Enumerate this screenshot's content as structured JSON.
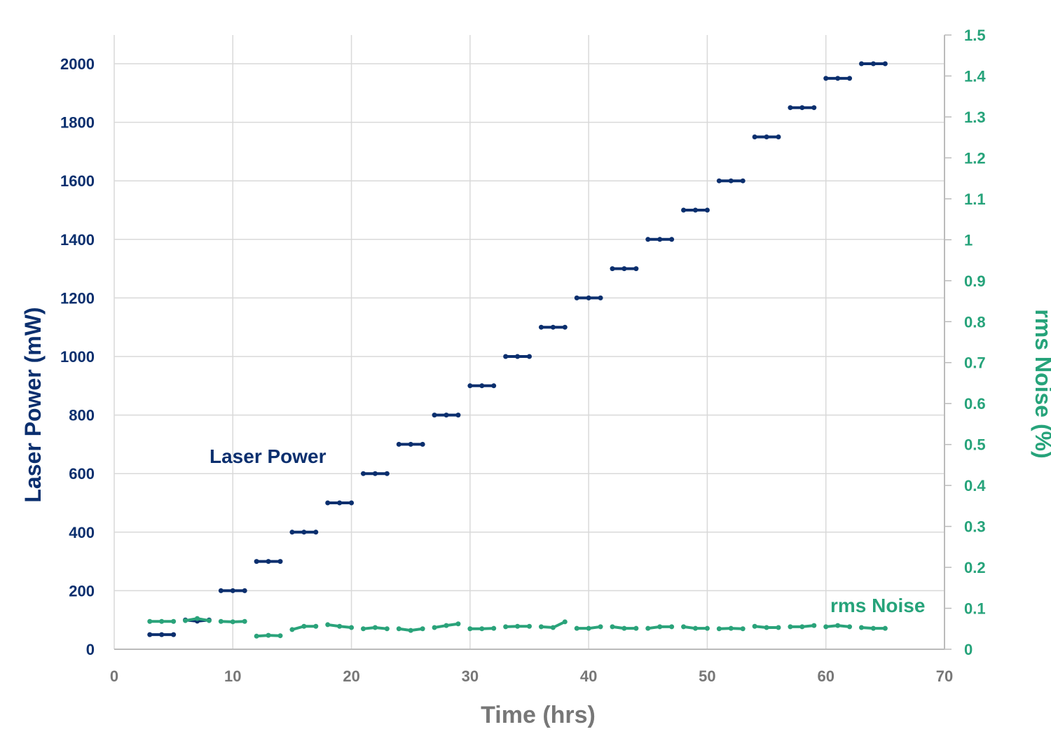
{
  "chart_data": {
    "type": "line",
    "xlabel": "Time (hrs)",
    "ylabel": "Laser Power (mW)",
    "y2label": "rms Noise (%)",
    "xlim": [
      0,
      70
    ],
    "ylim": [
      0,
      2100
    ],
    "y2lim": [
      0,
      1.5
    ],
    "xticks": [
      "0",
      "10",
      "20",
      "30",
      "40",
      "50",
      "60",
      "70"
    ],
    "yticks": [
      "0",
      "200",
      "400",
      "600",
      "800",
      "1000",
      "1200",
      "1400",
      "1600",
      "1800",
      "2000"
    ],
    "y2ticks": [
      "0",
      "0.1",
      "0.2",
      "0.3",
      "0.4",
      "0.5",
      "0.6",
      "0.7",
      "0.8",
      "0.9",
      "1",
      "1.1",
      "1.2",
      "1.3",
      "1.4",
      "1.5"
    ],
    "grid": true,
    "colors": {
      "laser": "#0b2f6e",
      "noise": "#2aa37a",
      "grid": "#d9d9d9"
    },
    "series": [
      {
        "name": "Laser Power",
        "axis": "left",
        "segments": [
          {
            "x": [
              3,
              4,
              5
            ],
            "y": [
              50,
              50,
              50
            ]
          },
          {
            "x": [
              6,
              7,
              8
            ],
            "y": [
              100,
              96,
              100
            ]
          },
          {
            "x": [
              9,
              10,
              11
            ],
            "y": [
              200,
              200,
              200
            ]
          },
          {
            "x": [
              12,
              13,
              14
            ],
            "y": [
              300,
              300,
              300
            ]
          },
          {
            "x": [
              15,
              16,
              17
            ],
            "y": [
              400,
              400,
              400
            ]
          },
          {
            "x": [
              18,
              19,
              20
            ],
            "y": [
              500,
              500,
              500
            ]
          },
          {
            "x": [
              21,
              22,
              23
            ],
            "y": [
              600,
              600,
              600
            ]
          },
          {
            "x": [
              24,
              25,
              26
            ],
            "y": [
              700,
              700,
              700
            ]
          },
          {
            "x": [
              27,
              28,
              29
            ],
            "y": [
              800,
              800,
              800
            ]
          },
          {
            "x": [
              30,
              31,
              32
            ],
            "y": [
              900,
              900,
              900
            ]
          },
          {
            "x": [
              33,
              34,
              35
            ],
            "y": [
              1000,
              1000,
              1000
            ]
          },
          {
            "x": [
              36,
              37,
              38
            ],
            "y": [
              1100,
              1100,
              1100
            ]
          },
          {
            "x": [
              39,
              40,
              41
            ],
            "y": [
              1200,
              1200,
              1200
            ]
          },
          {
            "x": [
              42,
              43,
              44
            ],
            "y": [
              1300,
              1300,
              1300
            ]
          },
          {
            "x": [
              45,
              46,
              47
            ],
            "y": [
              1400,
              1400,
              1400
            ]
          },
          {
            "x": [
              48,
              49,
              50
            ],
            "y": [
              1500,
              1500,
              1500
            ]
          },
          {
            "x": [
              51,
              52,
              53
            ],
            "y": [
              1600,
              1600,
              1600
            ]
          },
          {
            "x": [
              54,
              55,
              56
            ],
            "y": [
              1750,
              1750,
              1750
            ]
          },
          {
            "x": [
              57,
              58,
              59
            ],
            "y": [
              1850,
              1850,
              1850
            ]
          },
          {
            "x": [
              60,
              61,
              62
            ],
            "y": [
              1950,
              1950,
              1950
            ]
          },
          {
            "x": [
              63,
              64,
              65
            ],
            "y": [
              2000,
              2000,
              2000
            ]
          }
        ]
      },
      {
        "name": "rms Noise",
        "axis": "right",
        "segments": [
          {
            "x": [
              3,
              4,
              5
            ],
            "y": [
              0.068,
              0.068,
              0.068
            ]
          },
          {
            "x": [
              6,
              7,
              8
            ],
            "y": [
              0.07,
              0.075,
              0.07
            ]
          },
          {
            "x": [
              9,
              10,
              11
            ],
            "y": [
              0.068,
              0.067,
              0.068
            ]
          },
          {
            "x": [
              12,
              13,
              14
            ],
            "y": [
              0.032,
              0.034,
              0.033
            ]
          },
          {
            "x": [
              15,
              16,
              17
            ],
            "y": [
              0.048,
              0.056,
              0.056
            ]
          },
          {
            "x": [
              18,
              19,
              20
            ],
            "y": [
              0.06,
              0.056,
              0.053
            ]
          },
          {
            "x": [
              21,
              22,
              23
            ],
            "y": [
              0.05,
              0.053,
              0.05
            ]
          },
          {
            "x": [
              24,
              25,
              26
            ],
            "y": [
              0.05,
              0.046,
              0.05
            ]
          },
          {
            "x": [
              27,
              28,
              29
            ],
            "y": [
              0.053,
              0.058,
              0.062
            ]
          },
          {
            "x": [
              30,
              31,
              32
            ],
            "y": [
              0.05,
              0.05,
              0.051
            ]
          },
          {
            "x": [
              33,
              34,
              35
            ],
            "y": [
              0.055,
              0.056,
              0.056
            ]
          },
          {
            "x": [
              36,
              37,
              38
            ],
            "y": [
              0.055,
              0.053,
              0.067
            ]
          },
          {
            "x": [
              39,
              40,
              41
            ],
            "y": [
              0.051,
              0.051,
              0.055
            ]
          },
          {
            "x": [
              42,
              43,
              44
            ],
            "y": [
              0.055,
              0.051,
              0.051
            ]
          },
          {
            "x": [
              45,
              46,
              47
            ],
            "y": [
              0.051,
              0.055,
              0.055
            ]
          },
          {
            "x": [
              48,
              49,
              50
            ],
            "y": [
              0.055,
              0.051,
              0.051
            ]
          },
          {
            "x": [
              51,
              52,
              53
            ],
            "y": [
              0.05,
              0.051,
              0.05
            ]
          },
          {
            "x": [
              54,
              55,
              56
            ],
            "y": [
              0.056,
              0.053,
              0.053
            ]
          },
          {
            "x": [
              57,
              58,
              59
            ],
            "y": [
              0.055,
              0.055,
              0.058
            ]
          },
          {
            "x": [
              60,
              61,
              62
            ],
            "y": [
              0.055,
              0.058,
              0.055
            ]
          },
          {
            "x": [
              63,
              64,
              65
            ],
            "y": [
              0.053,
              0.051,
              0.051
            ]
          }
        ]
      }
    ],
    "annotations": [
      "Laser Power",
      "rms Noise"
    ]
  }
}
